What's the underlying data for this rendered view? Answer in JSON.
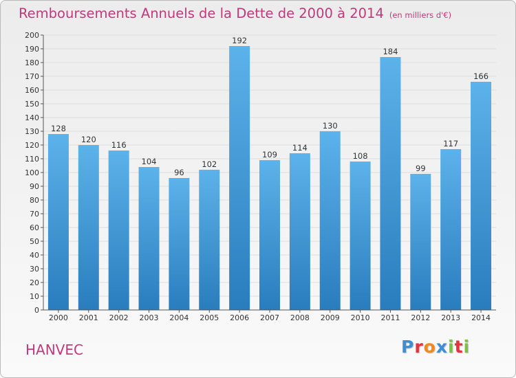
{
  "title": "Remboursements Annuels de la Dette de 2000 à 2014",
  "unit_note": "(en milliers d'€)",
  "place": "HANVEC",
  "logo": {
    "text": "Proxiti",
    "letter_colors": [
      "#3a8fd6",
      "#e2343c",
      "#f08a1c",
      "#3a8fd6",
      "#7cc142",
      "#e2343c",
      "#7cc142"
    ]
  },
  "colors": {
    "bar_light": "#5cb2ea",
    "bar_dark": "#2a7dbd",
    "text": "#c0397a"
  },
  "chart_data": {
    "type": "bar",
    "categories": [
      "2000",
      "2001",
      "2002",
      "2003",
      "2004",
      "2005",
      "2006",
      "2007",
      "2008",
      "2009",
      "2010",
      "2011",
      "2012",
      "2013",
      "2014"
    ],
    "values": [
      128,
      120,
      116,
      104,
      96,
      102,
      192,
      109,
      114,
      130,
      108,
      184,
      99,
      117,
      166
    ],
    "ylim": [
      0,
      200
    ],
    "ytick_step": 10,
    "grid": true
  }
}
